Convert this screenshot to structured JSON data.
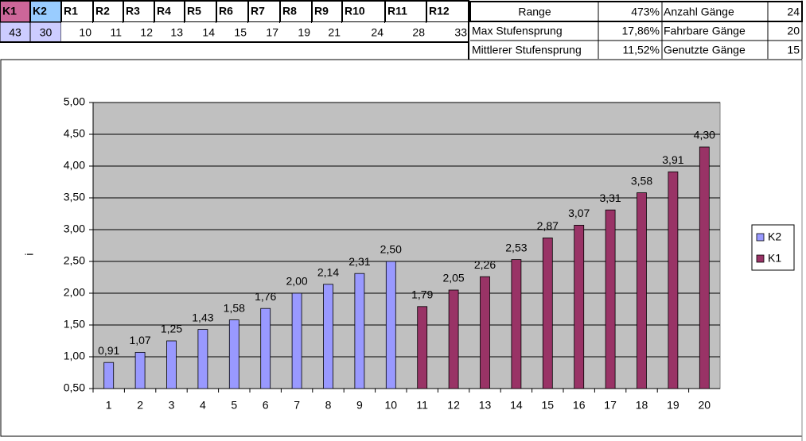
{
  "table": {
    "gears": {
      "header": [
        "K1",
        "K2",
        "R1",
        "R2",
        "R3",
        "R4",
        "R5",
        "R6",
        "R7",
        "R8",
        "R9",
        "R10",
        "R11",
        "R12"
      ],
      "row": [
        "43",
        "30",
        "10",
        "11",
        "12",
        "13",
        "14",
        "15",
        "17",
        "19",
        "21",
        "24",
        "28",
        "33"
      ]
    },
    "stats": [
      [
        "Range",
        "473%",
        "Anzahl Gänge",
        "24"
      ],
      [
        "Max Stufensprung",
        "17,86%",
        "Fahrbare Gänge",
        "20"
      ],
      [
        "Mittlerer Stufensprung",
        "11,52%",
        "Genutzte Gänge",
        "15"
      ]
    ]
  },
  "chart_data": {
    "type": "bar",
    "y_label": "i",
    "categories": [
      "1",
      "2",
      "3",
      "4",
      "5",
      "6",
      "7",
      "8",
      "9",
      "10",
      "11",
      "12",
      "13",
      "14",
      "15",
      "16",
      "17",
      "18",
      "19",
      "20"
    ],
    "series": [
      {
        "name": "K2",
        "color": "#9999ff",
        "values": [
          0.91,
          1.07,
          1.25,
          1.43,
          1.58,
          1.76,
          2.0,
          2.14,
          2.31,
          2.5,
          null,
          null,
          null,
          null,
          null,
          null,
          null,
          null,
          null,
          null
        ],
        "value_labels": [
          "0,91",
          "1,07",
          "1,25",
          "1,43",
          "1,58",
          "1,76",
          "2,00",
          "2,14",
          "2,31",
          "2,50",
          null,
          null,
          null,
          null,
          null,
          null,
          null,
          null,
          null,
          null
        ]
      },
      {
        "name": "K1",
        "color": "#993366",
        "values": [
          null,
          null,
          null,
          null,
          null,
          null,
          null,
          null,
          null,
          null,
          1.79,
          2.05,
          2.26,
          2.53,
          2.87,
          3.07,
          3.31,
          3.58,
          3.91,
          4.3
        ],
        "value_labels": [
          null,
          null,
          null,
          null,
          null,
          null,
          null,
          null,
          null,
          null,
          "1,79",
          "2,05",
          "2,26",
          "2,53",
          "2,87",
          "3,07",
          "3,31",
          "3,58",
          "3,91",
          "4,30"
        ]
      }
    ],
    "ylim": [
      0.5,
      5
    ],
    "yticks": [
      {
        "value": 0.5,
        "label": "0,50"
      },
      {
        "value": 1,
        "label": "1,00"
      },
      {
        "value": 1.5,
        "label": "1,50"
      },
      {
        "value": 2,
        "label": "2,00"
      },
      {
        "value": 2.5,
        "label": "2,50"
      },
      {
        "value": 3,
        "label": "3,00"
      },
      {
        "value": 3.5,
        "label": "3,50"
      },
      {
        "value": 4,
        "label": "4,00"
      },
      {
        "value": 4.5,
        "label": "4,50"
      },
      {
        "value": 5,
        "label": "5,00"
      }
    ],
    "grid": true,
    "plot_background": "#c0c0c0",
    "legend": "right"
  }
}
